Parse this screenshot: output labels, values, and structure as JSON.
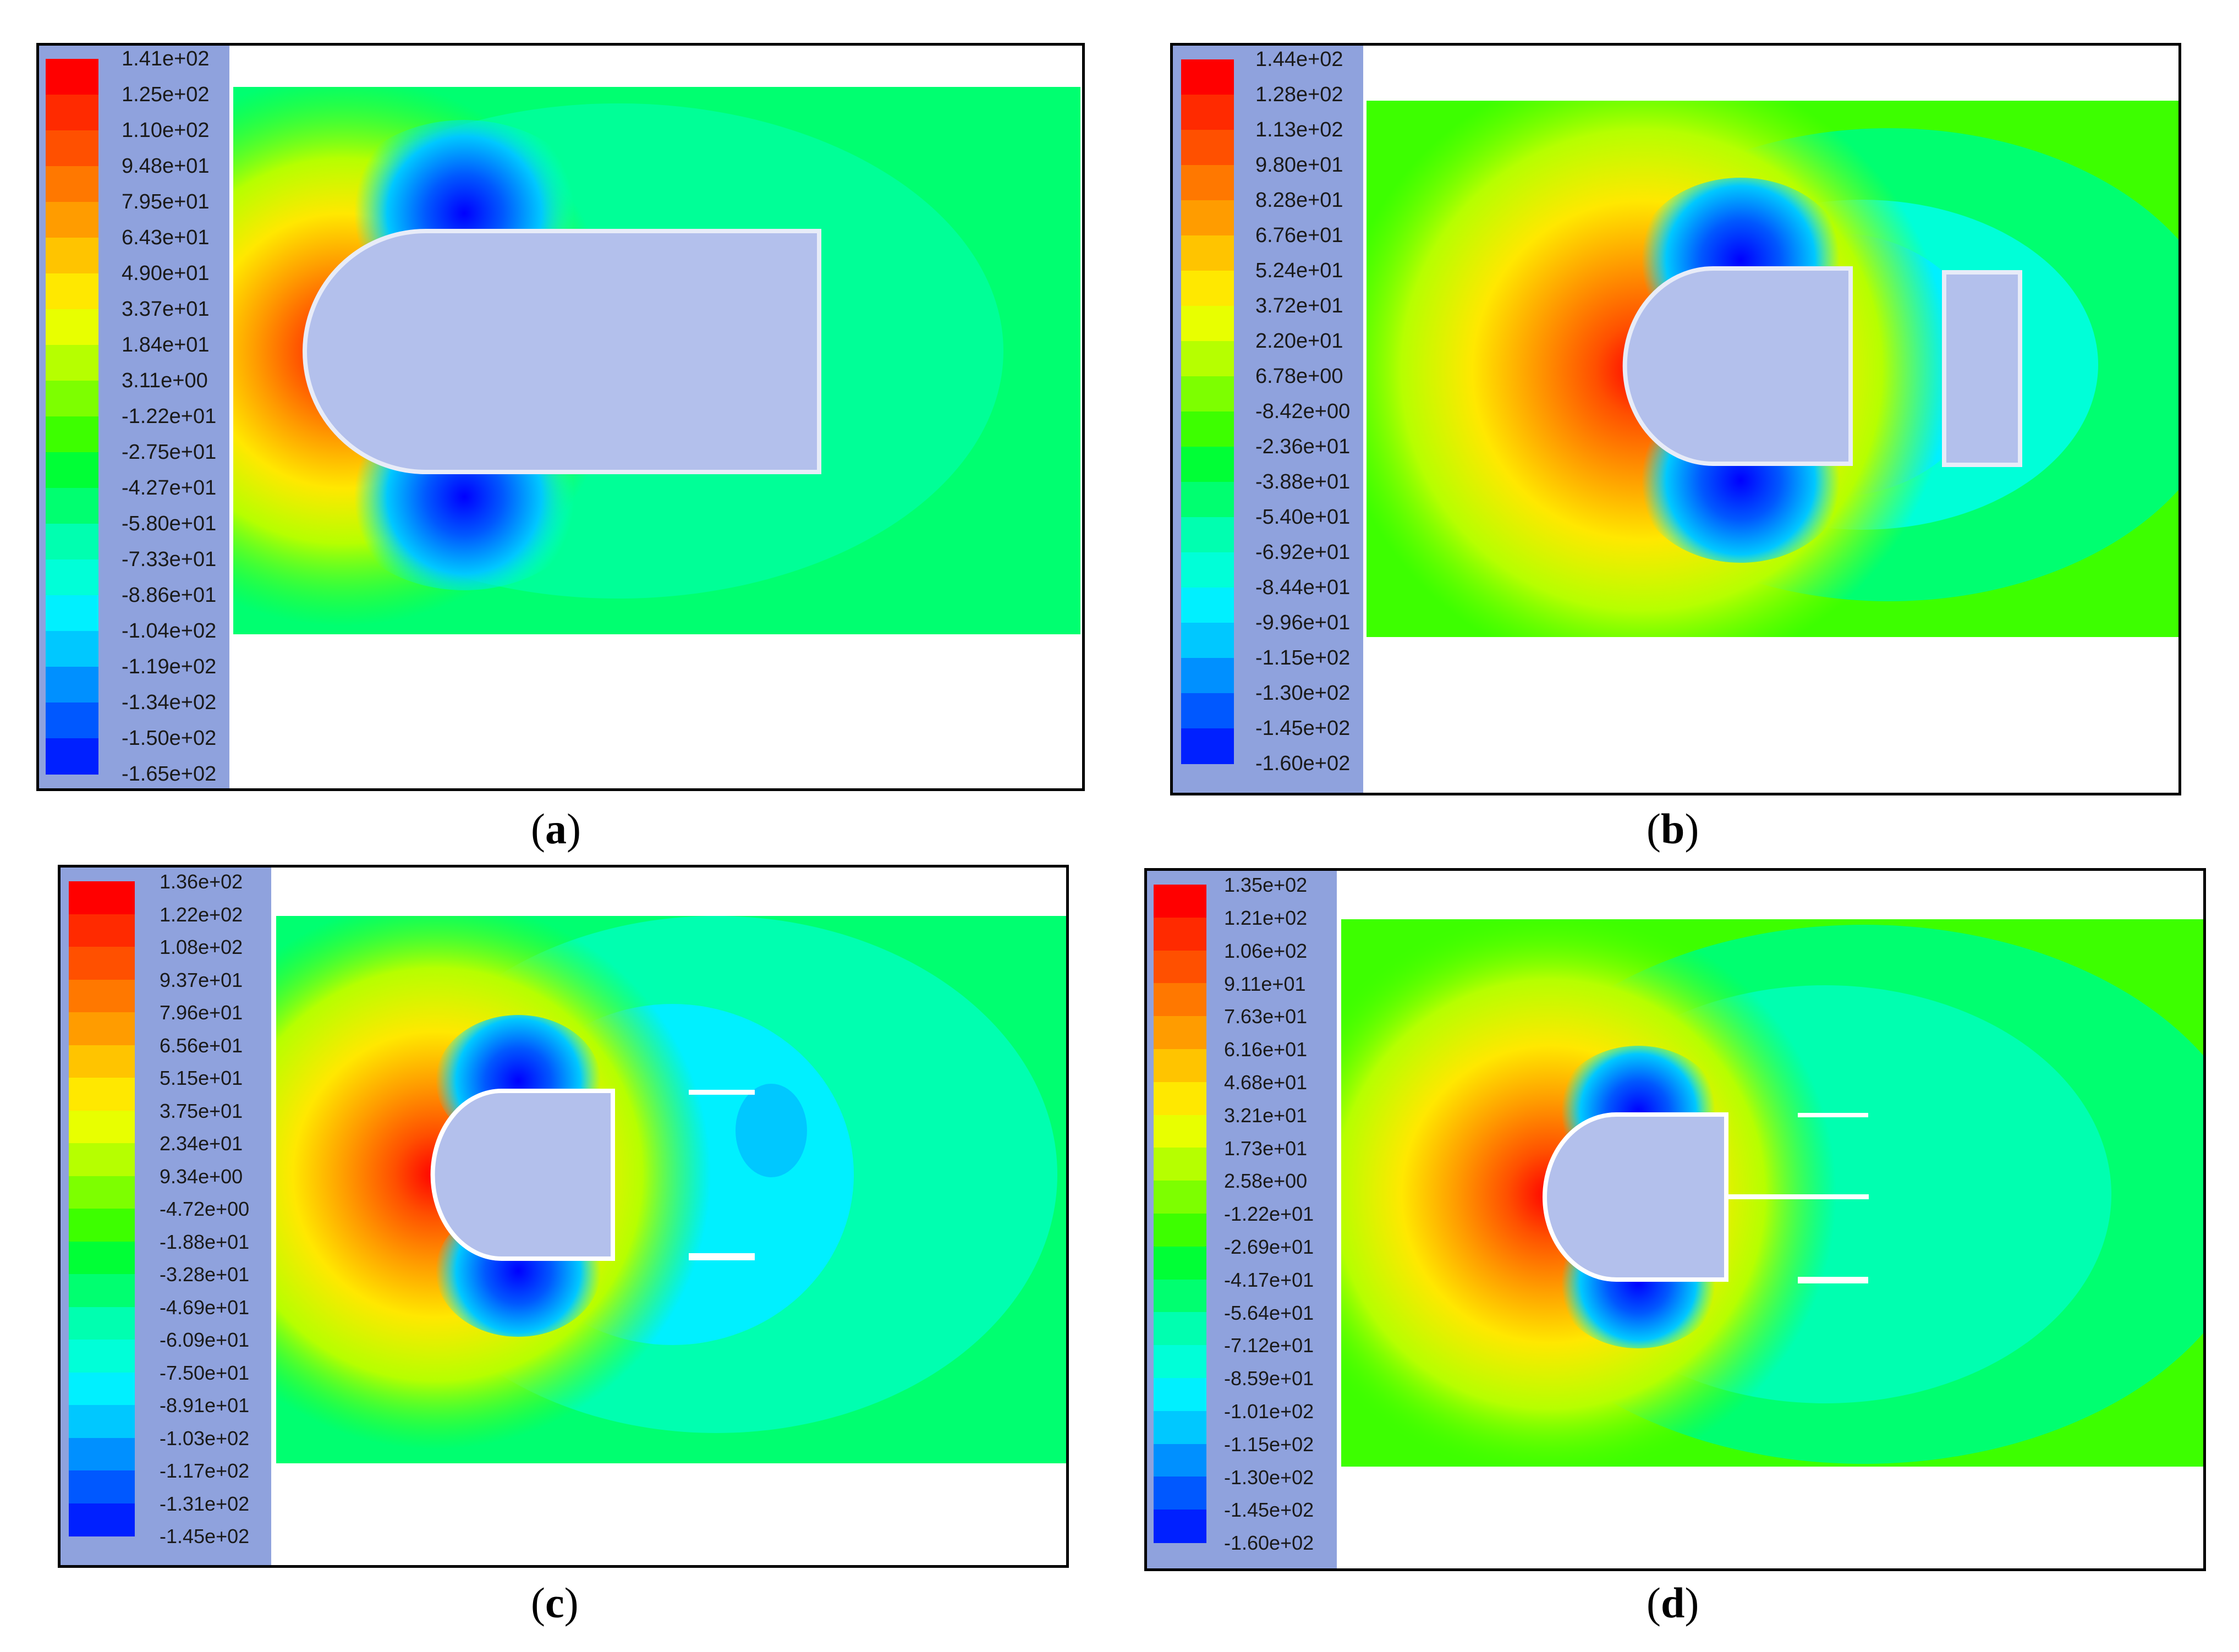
{
  "panels": [
    {
      "id": "a",
      "caption_letter": "a",
      "legend_values": [
        "1.41e+02",
        "1.25e+02",
        "1.10e+02",
        "9.48e+01",
        "7.95e+01",
        "6.43e+01",
        "4.90e+01",
        "3.37e+01",
        "1.84e+01",
        "3.11e+00",
        "-1.22e+01",
        "-2.75e+01",
        "-4.27e+01",
        "-5.80e+01",
        "-7.33e+01",
        "-8.86e+01",
        "-1.04e+02",
        "-1.19e+02",
        "-1.34e+02",
        "-1.50e+02",
        "-1.65e+02"
      ]
    },
    {
      "id": "b",
      "caption_letter": "b",
      "legend_values": [
        "1.44e+02",
        "1.28e+02",
        "1.13e+02",
        "9.80e+01",
        "8.28e+01",
        "6.76e+01",
        "5.24e+01",
        "3.72e+01",
        "2.20e+01",
        "6.78e+00",
        "-8.42e+00",
        "-2.36e+01",
        "-3.88e+01",
        "-5.40e+01",
        "-6.92e+01",
        "-8.44e+01",
        "-9.96e+01",
        "-1.15e+02",
        "-1.30e+02",
        "-1.45e+02",
        "-1.60e+02"
      ]
    },
    {
      "id": "c",
      "caption_letter": "c",
      "legend_values": [
        "1.36e+02",
        "1.22e+02",
        "1.08e+02",
        "9.37e+01",
        "7.96e+01",
        "6.56e+01",
        "5.15e+01",
        "3.75e+01",
        "2.34e+01",
        "9.34e+00",
        "-4.72e+00",
        "-1.88e+01",
        "-3.28e+01",
        "-4.69e+01",
        "-6.09e+01",
        "-7.50e+01",
        "-8.91e+01",
        "-1.03e+02",
        "-1.17e+02",
        "-1.31e+02",
        "-1.45e+02"
      ]
    },
    {
      "id": "d",
      "caption_letter": "d",
      "legend_values": [
        "1.35e+02",
        "1.21e+02",
        "1.06e+02",
        "9.11e+01",
        "7.63e+01",
        "6.16e+01",
        "4.68e+01",
        "3.21e+01",
        "1.73e+01",
        "2.58e+00",
        "-1.22e+01",
        "-2.69e+01",
        "-4.17e+01",
        "-5.64e+01",
        "-7.12e+01",
        "-8.59e+01",
        "-1.01e+02",
        "-1.15e+02",
        "-1.30e+02",
        "-1.45e+02",
        "-1.60e+02"
      ]
    }
  ],
  "colorbar": [
    "#ff0000",
    "#ff2a00",
    "#ff5000",
    "#ff7800",
    "#ff9c00",
    "#ffc400",
    "#ffe800",
    "#e8ff00",
    "#b6ff00",
    "#7dff00",
    "#3dff00",
    "#00ff36",
    "#00ff70",
    "#00ffb0",
    "#00ffd8",
    "#00f0ff",
    "#00c8ff",
    "#0090ff",
    "#0058ff",
    "#0020ff",
    "#0000ff"
  ]
}
